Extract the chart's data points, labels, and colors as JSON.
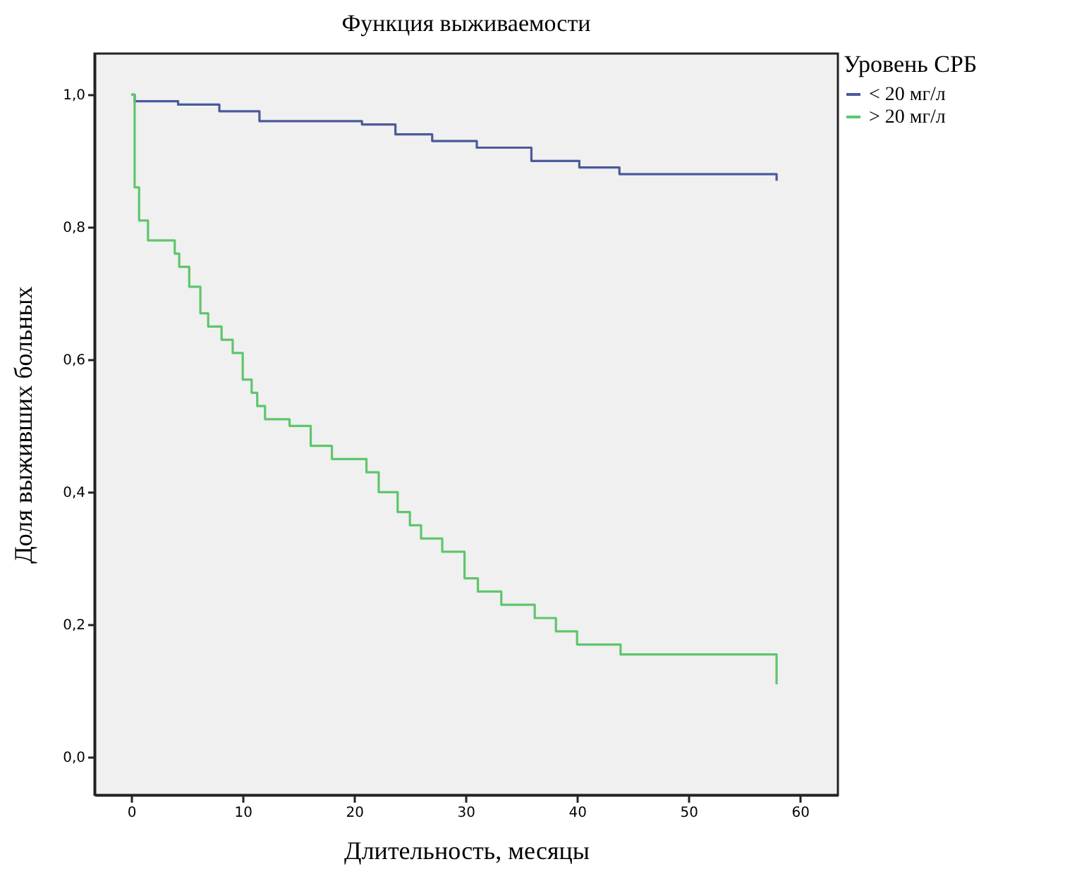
{
  "chart_data": {
    "type": "step",
    "title": "Функция выживаемости",
    "xlabel": "Длительность, месяцы",
    "ylabel": "Доля выживших больных",
    "legend_title": "Уровень СРБ",
    "legend": "top right",
    "grid": false,
    "xlim": [
      -3.3,
      63.4
    ],
    "xticks": [
      0,
      10,
      20,
      30,
      40,
      50,
      60
    ],
    "ylim": [
      -0.057,
      1.062
    ],
    "yticks": [
      {
        "value": 0,
        "label": "0,0"
      },
      {
        "value": 0.2,
        "label": "0,2"
      },
      {
        "value": 0.4,
        "label": "0,4"
      },
      {
        "value": 0.6,
        "label": "0,6"
      },
      {
        "value": 0.8,
        "label": "0,8"
      },
      {
        "value": 1,
        "label": "1,0"
      }
    ],
    "series": [
      {
        "name": "< 20 мг/л",
        "color": "#4a5a9a",
        "x": [
          0,
          0.3,
          4.2,
          7.9,
          11.5,
          20.7,
          23.7,
          27,
          31,
          35.9,
          40.2,
          43.8,
          57.9,
          57.9
        ],
        "values": [
          1.0,
          0.99,
          0.985,
          0.975,
          0.96,
          0.955,
          0.94,
          0.93,
          0.92,
          0.9,
          0.89,
          0.88,
          0.88,
          0.87
        ]
      },
      {
        "name": "> 20 мг/л",
        "color": "#5ec66b",
        "x": [
          0,
          0.3,
          0.7,
          1.5,
          2.6,
          3.9,
          4.3,
          5.2,
          6.2,
          6.9,
          8.1,
          9.1,
          10.0,
          10.8,
          11.3,
          12.0,
          14.2,
          16.1,
          18.0,
          21.1,
          22.2,
          23.9,
          25.0,
          26.0,
          27.9,
          29.9,
          31.1,
          33.2,
          36.2,
          38.1,
          40.0,
          43.9,
          57.9,
          57.9
        ],
        "values": [
          1.0,
          0.86,
          0.81,
          0.78,
          0.78,
          0.76,
          0.74,
          0.71,
          0.67,
          0.65,
          0.63,
          0.61,
          0.57,
          0.55,
          0.53,
          0.51,
          0.5,
          0.47,
          0.45,
          0.43,
          0.4,
          0.37,
          0.35,
          0.33,
          0.31,
          0.27,
          0.25,
          0.23,
          0.21,
          0.19,
          0.17,
          0.155,
          0.155,
          0.11
        ]
      }
    ]
  }
}
